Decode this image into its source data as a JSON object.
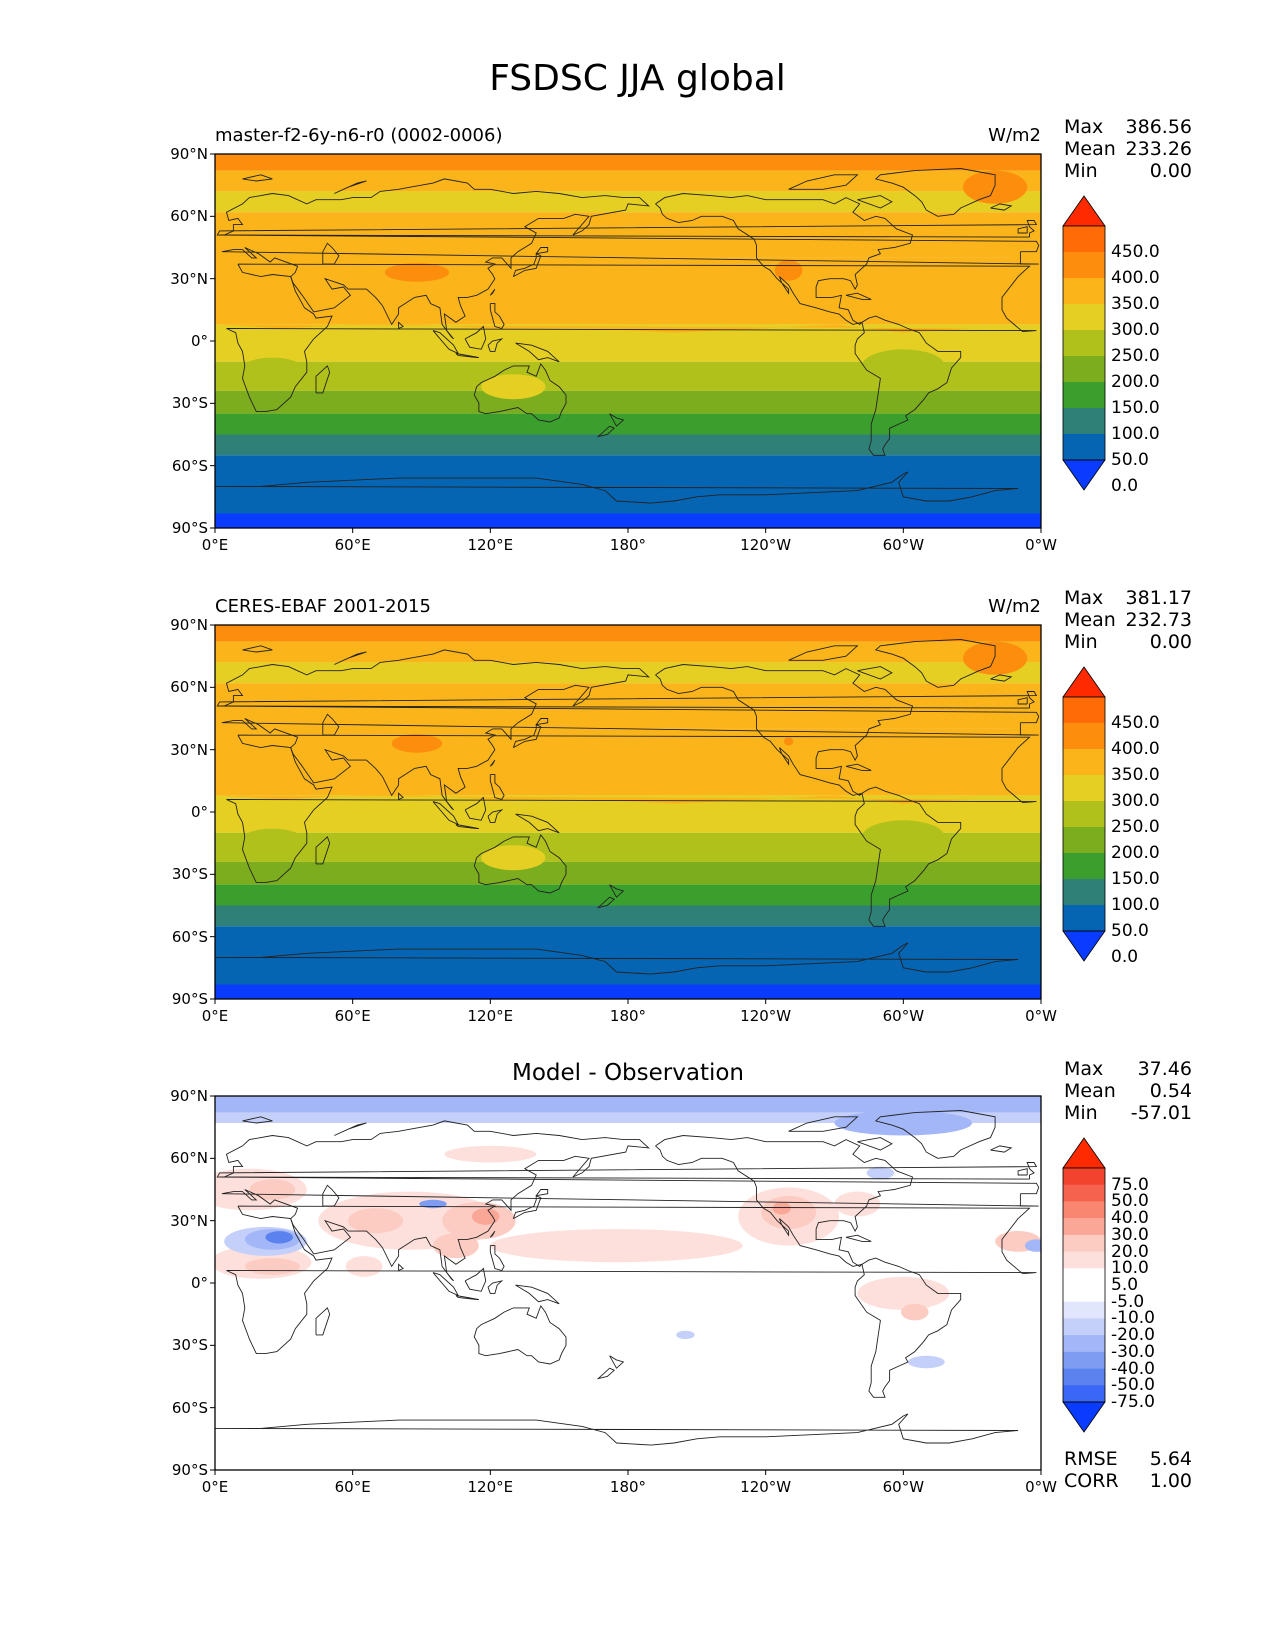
{
  "title": "FSDSC JJA global",
  "colors": {
    "levels": [
      "#0a3cff",
      "#0565b3",
      "#2f8177",
      "#3b9f2d",
      "#7bad1f",
      "#b0c11b",
      "#e6cf23",
      "#fbb41a",
      "#fc8d0d",
      "#ff6b06",
      "#ff2a00"
    ],
    "diff": [
      "#0a3cff",
      "#3a67f5",
      "#5b82ef",
      "#7f9cf3",
      "#a3b6f7",
      "#c5d0fa",
      "#e1e6fc",
      "#ffffff",
      "#ffffff",
      "#fde0dc",
      "#fccbc2",
      "#fba798",
      "#f98671",
      "#f5634e",
      "#f1432e",
      "#ff2a00"
    ],
    "coast": "#222222"
  },
  "panels": [
    {
      "id": "test",
      "left_text": "master-f2-6y-n6-r0 (0002-0006)",
      "center_text": "",
      "units": "W/m2",
      "stats": [
        {
          "label": "Max",
          "value": "386.56"
        },
        {
          "label": "Mean",
          "value": "233.26"
        },
        {
          "label": "Min",
          "value": "0.00"
        }
      ],
      "colorbar_labels": [
        "450.0",
        "400.0",
        "350.0",
        "300.0",
        "250.0",
        "200.0",
        "150.0",
        "100.0",
        "50.0",
        "0.0"
      ],
      "extra_stats": []
    },
    {
      "id": "ref",
      "left_text": "CERES-EBAF 2001-2015",
      "center_text": "",
      "units": "W/m2",
      "stats": [
        {
          "label": "Max",
          "value": "381.17"
        },
        {
          "label": "Mean",
          "value": "232.73"
        },
        {
          "label": "Min",
          "value": "0.00"
        }
      ],
      "colorbar_labels": [
        "450.0",
        "400.0",
        "350.0",
        "300.0",
        "250.0",
        "200.0",
        "150.0",
        "100.0",
        "50.0",
        "0.0"
      ],
      "extra_stats": []
    },
    {
      "id": "diff",
      "left_text": "",
      "center_text": "Model - Observation",
      "units": "",
      "stats": [
        {
          "label": "Max",
          "value": "37.46"
        },
        {
          "label": "Mean",
          "value": "0.54"
        },
        {
          "label": "Min",
          "value": "-57.01"
        }
      ],
      "colorbar_labels": [
        "75.0",
        "50.0",
        "40.0",
        "30.0",
        "20.0",
        "10.0",
        "5.0",
        "-5.0",
        "-10.0",
        "-20.0",
        "-30.0",
        "-40.0",
        "-50.0",
        "-75.0"
      ],
      "extra_stats": [
        {
          "label": "RMSE",
          "value": "5.64"
        },
        {
          "label": "CORR",
          "value": "1.00"
        }
      ]
    }
  ],
  "x_ticks": [
    "0°E",
    "60°E",
    "120°E",
    "180°",
    "120°W",
    "60°W",
    "0°W"
  ],
  "y_ticks": [
    "90°N",
    "60°N",
    "30°N",
    "0°",
    "30°S",
    "60°S",
    "90°S"
  ],
  "chart_data": [
    {
      "type": "heatmap",
      "title": "master-f2-6y-n6-r0 (0002-0006)",
      "units": "W/m2",
      "projection": "PlateCarree, centered 180°",
      "x_range": [
        0,
        360
      ],
      "y_range": [
        -90,
        90
      ],
      "contour_levels": [
        0,
        50,
        100,
        150,
        200,
        250,
        300,
        350,
        400,
        450
      ],
      "stats": {
        "max": 386.56,
        "mean": 233.26,
        "min": 0.0
      },
      "zonal_bands": [
        {
          "lat": [
            82,
            90
          ],
          "level": 350
        },
        {
          "lat": [
            72,
            82
          ],
          "level": 300
        },
        {
          "lat": [
            62,
            72
          ],
          "level": 250
        },
        {
          "lat": [
            40,
            62
          ],
          "level": 300
        },
        {
          "lat": [
            8,
            40
          ],
          "level": 300
        },
        {
          "lat": [
            -10,
            8
          ],
          "level": 250
        },
        {
          "lat": [
            -24,
            -10
          ],
          "level": 200
        },
        {
          "lat": [
            -35,
            -24
          ],
          "level": 150
        },
        {
          "lat": [
            -45,
            -35
          ],
          "level": 100
        },
        {
          "lat": [
            -55,
            -45
          ],
          "level": 50
        },
        {
          "lat": [
            -83,
            -55
          ],
          "level": 0
        },
        {
          "lat": [
            -90,
            -83
          ],
          "level": -1
        }
      ]
    },
    {
      "type": "heatmap",
      "title": "CERES-EBAF 2001-2015",
      "units": "W/m2",
      "projection": "PlateCarree, centered 180°",
      "x_range": [
        0,
        360
      ],
      "y_range": [
        -90,
        90
      ],
      "contour_levels": [
        0,
        50,
        100,
        150,
        200,
        250,
        300,
        350,
        400,
        450
      ],
      "stats": {
        "max": 381.17,
        "mean": 232.73,
        "min": 0.0
      },
      "zonal_bands": [
        {
          "lat": [
            82,
            90
          ],
          "level": 350
        },
        {
          "lat": [
            72,
            82
          ],
          "level": 300
        },
        {
          "lat": [
            62,
            72
          ],
          "level": 250
        },
        {
          "lat": [
            40,
            62
          ],
          "level": 300
        },
        {
          "lat": [
            8,
            40
          ],
          "level": 300
        },
        {
          "lat": [
            -10,
            8
          ],
          "level": 250
        },
        {
          "lat": [
            -24,
            -10
          ],
          "level": 200
        },
        {
          "lat": [
            -35,
            -24
          ],
          "level": 150
        },
        {
          "lat": [
            -45,
            -35
          ],
          "level": 100
        },
        {
          "lat": [
            -55,
            -45
          ],
          "level": 50
        },
        {
          "lat": [
            -83,
            -55
          ],
          "level": 0
        },
        {
          "lat": [
            -90,
            -83
          ],
          "level": -1
        }
      ]
    },
    {
      "type": "heatmap",
      "title": "Model - Observation",
      "projection": "PlateCarree, centered 180°",
      "x_range": [
        0,
        360
      ],
      "y_range": [
        -90,
        90
      ],
      "contour_levels": [
        -75,
        -50,
        -40,
        -30,
        -20,
        -10,
        -5,
        5,
        10,
        20,
        30,
        40,
        50,
        75
      ],
      "stats": {
        "max": 37.46,
        "mean": 0.54,
        "min": -57.01,
        "rmse": 5.64,
        "corr": 1.0
      }
    }
  ]
}
